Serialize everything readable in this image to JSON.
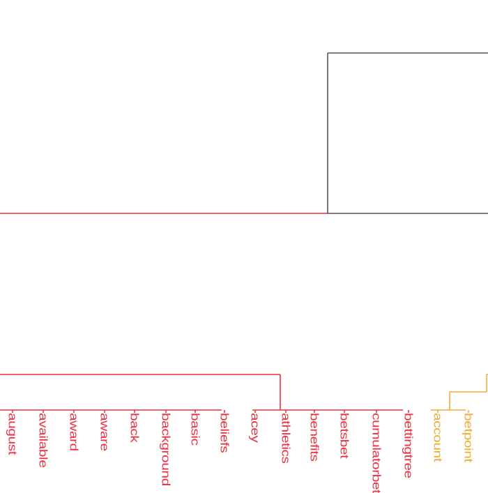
{
  "diagram": {
    "type": "dendrogram",
    "colors": {
      "red_cluster": "#ee2f3f",
      "orange_cluster": "#f5ab33",
      "root": "#555555",
      "background": "#ffffff"
    },
    "leaves": [
      {
        "label": "august",
        "cluster": "red"
      },
      {
        "label": "available",
        "cluster": "red"
      },
      {
        "label": "award",
        "cluster": "red"
      },
      {
        "label": "aware",
        "cluster": "red"
      },
      {
        "label": "back",
        "cluster": "red"
      },
      {
        "label": "background",
        "cluster": "red"
      },
      {
        "label": "basic",
        "cluster": "red"
      },
      {
        "label": "beliefs",
        "cluster": "red"
      },
      {
        "label": "acey",
        "cluster": "red"
      },
      {
        "label": "athletics",
        "cluster": "red"
      },
      {
        "label": "benefits",
        "cluster": "red"
      },
      {
        "label": "betsbet",
        "cluster": "red"
      },
      {
        "label": "cumulatorbet",
        "cluster": "red"
      },
      {
        "label": "bettingtree",
        "cluster": "red"
      },
      {
        "label": "account",
        "cluster": "orange"
      },
      {
        "label": "betpoint",
        "cluster": "orange"
      }
    ]
  }
}
